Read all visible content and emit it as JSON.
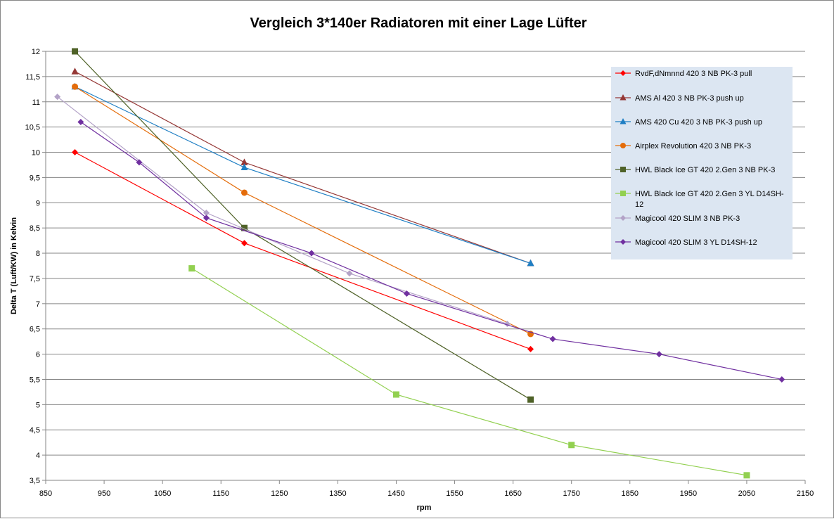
{
  "chart_data": {
    "type": "line",
    "title": "Vergleich 3*140er Radiatoren mit einer Lage Lüfter",
    "xlabel": "rpm",
    "ylabel": "Delta T (Luft/KW) in Kelvin",
    "xlim": [
      850,
      2150
    ],
    "ylim": [
      3.5,
      12
    ],
    "xticks": [
      850,
      950,
      1050,
      1150,
      1250,
      1350,
      1450,
      1550,
      1650,
      1750,
      1850,
      1950,
      2050,
      2150
    ],
    "yticks": [
      3.5,
      4,
      4.5,
      5,
      5.5,
      6,
      6.5,
      7,
      7.5,
      8,
      8.5,
      9,
      9.5,
      10,
      10.5,
      11,
      11.5,
      12
    ],
    "xtick_labels": [
      "850",
      "950",
      "1050",
      "1150",
      "1250",
      "1350",
      "1450",
      "1550",
      "1650",
      "1750",
      "1850",
      "1950",
      "2050",
      "2150"
    ],
    "ytick_labels": [
      "3,5",
      "4",
      "4,5",
      "5",
      "5,5",
      "6",
      "6,5",
      "7",
      "7,5",
      "8",
      "8,5",
      "9",
      "9,5",
      "10",
      "10,5",
      "11",
      "11,5",
      "12"
    ],
    "grid": "horizontal",
    "legend_position": "right",
    "series": [
      {
        "name": "RvdF,dNmnnd 420 3 NB PK-3 pull",
        "color": "#ff0000",
        "marker": "diamond",
        "x": [
          900,
          1190,
          1680
        ],
        "y": [
          10,
          8.2,
          6.1
        ]
      },
      {
        "name": "AMS Al 420 3 NB PK-3 push up",
        "color": "#953735",
        "marker": "triangle",
        "x": [
          900,
          1190,
          1680
        ],
        "y": [
          11.6,
          9.8,
          7.8
        ]
      },
      {
        "name": "AMS 420 Cu 420 3 NB PK-3 push up",
        "color": "#1f7fc4",
        "marker": "triangle",
        "x": [
          900,
          1190,
          1680
        ],
        "y": [
          11.3,
          9.7,
          7.8
        ]
      },
      {
        "name": "Airplex Revolution 420 3 NB PK-3",
        "color": "#e46c0a",
        "marker": "circle",
        "x": [
          900,
          1190,
          1680
        ],
        "y": [
          11.3,
          9.2,
          6.4
        ]
      },
      {
        "name": "HWL Black Ice GT 420 2.Gen 3 NB PK-3",
        "color": "#4f6228",
        "marker": "square",
        "x": [
          900,
          1190,
          1680
        ],
        "y": [
          12,
          8.5,
          5.1
        ]
      },
      {
        "name": "HWL Black Ice GT 420 2.Gen 3 YL D14SH-12",
        "color": "#92d050",
        "marker": "square",
        "x": [
          1100,
          1450,
          1750,
          2050
        ],
        "y": [
          7.7,
          5.2,
          4.2,
          3.6
        ]
      },
      {
        "name": "Magicool 420 SLIM 3 NB PK-3",
        "color": "#b3a2c7",
        "marker": "diamond",
        "x": [
          870,
          1125,
          1370,
          1640
        ],
        "y": [
          11.1,
          8.8,
          7.6,
          6.6
        ]
      },
      {
        "name": "Magicool 420 SLIM 3 YL D14SH-12",
        "color": "#7030a0",
        "marker": "diamond",
        "x": [
          910,
          1010,
          1125,
          1305,
          1468,
          1718,
          1900,
          2110
        ],
        "y": [
          10.6,
          9.8,
          8.7,
          8,
          7.2,
          6.3,
          6,
          5.5
        ]
      }
    ],
    "legend_lines": [
      [
        "RvdF,dNmnnd 420 3 NB PK-3 pull"
      ],
      [
        "AMS Al 420 3 NB PK-3 push up"
      ],
      [
        "AMS 420 Cu 420 3 NB PK-3 push up"
      ],
      [
        "Airplex Revolution 420 3 NB PK-3"
      ],
      [
        "HWL Black Ice GT 420 2.Gen 3 NB PK-3"
      ],
      [
        "HWL Black Ice GT 420 2.Gen 3 YL D14SH-",
        "12"
      ],
      [
        "Magicool 420 SLIM 3 NB PK-3"
      ],
      [
        "Magicool 420 SLIM 3 YL D14SH-12"
      ]
    ],
    "colors": {
      "gridline": "#868686",
      "axis": "#868686",
      "legend_background": "#dce6f2"
    }
  }
}
